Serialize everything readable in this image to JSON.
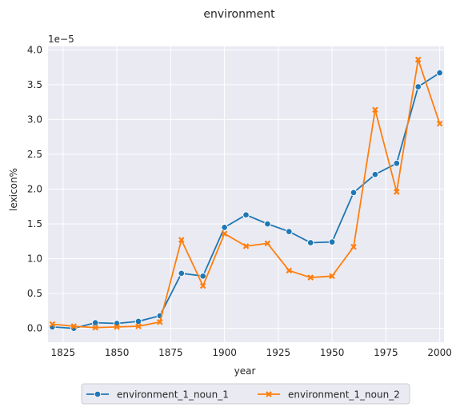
{
  "chart_data": {
    "type": "line",
    "title": "environment",
    "xlabel": "year",
    "ylabel": "lexicon%",
    "y_scale_label": "1e−5",
    "xlim": [
      1818,
      2002
    ],
    "ylim": [
      -0.2,
      4.05
    ],
    "x_ticks": [
      1825,
      1850,
      1875,
      1900,
      1925,
      1950,
      1975,
      2000
    ],
    "x_tick_labels": [
      "1825",
      "1850",
      "1875",
      "1900",
      "1925",
      "1950",
      "1975",
      "2000"
    ],
    "y_ticks": [
      0.0,
      0.5,
      1.0,
      1.5,
      2.0,
      2.5,
      3.0,
      3.5,
      4.0
    ],
    "y_tick_labels": [
      "0.0",
      "0.5",
      "1.0",
      "1.5",
      "2.0",
      "2.5",
      "3.0",
      "3.5",
      "4.0"
    ],
    "grid": true,
    "legend_placement": "bottom-center",
    "x": [
      1820,
      1830,
      1840,
      1850,
      1860,
      1870,
      1880,
      1890,
      1900,
      1910,
      1920,
      1930,
      1940,
      1950,
      1960,
      1970,
      1980,
      1990,
      2000
    ],
    "series": [
      {
        "name": "environment_1_noun_1",
        "color": "#1f77b4",
        "marker": "circle",
        "values": [
          0.02,
          0.0,
          0.08,
          0.07,
          0.1,
          0.18,
          0.79,
          0.75,
          1.45,
          1.63,
          1.5,
          1.39,
          1.23,
          1.24,
          1.95,
          2.21,
          2.37,
          3.47,
          3.67
        ]
      },
      {
        "name": "environment_1_noun_2",
        "color": "#ff7f0e",
        "marker": "x",
        "values": [
          0.06,
          0.03,
          0.01,
          0.02,
          0.03,
          0.09,
          1.27,
          0.61,
          1.36,
          1.18,
          1.22,
          0.83,
          0.73,
          0.75,
          1.17,
          3.14,
          1.96,
          3.86,
          2.94
        ]
      }
    ]
  }
}
